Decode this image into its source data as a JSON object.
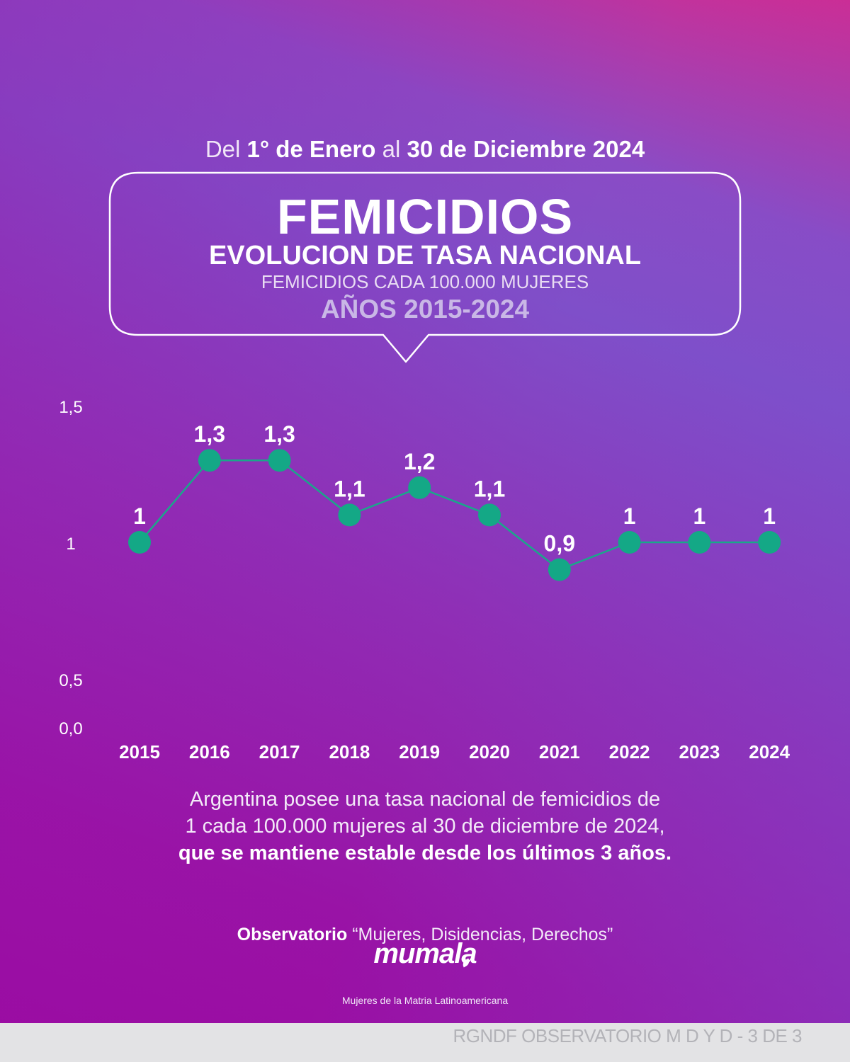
{
  "header": {
    "date_prefix": "Del",
    "date_mid": "1° de Enero",
    "date_connector": "al",
    "date_end": "30 de Diciembre 2024",
    "title": "FEMICIDIOS",
    "subtitle": "EVOLUCION DE TASA NACIONAL",
    "unit": "FEMICIDIOS CADA 100.000 MUJERES",
    "years": "AÑOS 2015-2024"
  },
  "chart_data": {
    "type": "line",
    "categories": [
      "2015",
      "2016",
      "2017",
      "2018",
      "2019",
      "2020",
      "2021",
      "2022",
      "2023",
      "2024"
    ],
    "series": [
      {
        "values": [
          1,
          1.3,
          1.3,
          1.1,
          1.2,
          1.1,
          0.9,
          1,
          1,
          1
        ]
      }
    ],
    "data_labels": [
      "1",
      "1,3",
      "1,3",
      "1,1",
      "1,2",
      "1,1",
      "0,9",
      "1",
      "1",
      "1"
    ],
    "y_tick_labels": [
      "0,0",
      "0,5",
      "1",
      "1,5"
    ],
    "y_ticks": [
      0,
      0.5,
      1,
      1.5
    ],
    "ylim": [
      0,
      1.5
    ],
    "y_scale": "nonlinear (0–0.5 compressed, 0.5–1.5 expanded)",
    "grid": false,
    "colors": {
      "line": "#1aa78a",
      "marker": "#14a886",
      "labels": "#ffffff"
    }
  },
  "note": {
    "line1": "Argentina posee una tasa nacional de femicidios de",
    "line2": "1 cada 100.000 mujeres al 30 de diciembre de 2024,",
    "line3": "que se mantiene estable desde los últimos 3 años."
  },
  "footer": {
    "observatorio_bold": "Observatorio",
    "observatorio_rest": "“Mujeres, Disidencias, Derechos”",
    "logo_text": "mumala",
    "logo_subtitle": "Mujeres de la Matria Latinoamericana",
    "bar_text": "RGNDF OBSERVATORIO M D Y D - 3 DE 3"
  },
  "colors": {
    "bg_top": "#8a4cc5",
    "bg_bottom": "#9b0aa1",
    "accent_green": "#14a886",
    "footer_bar": "#e3e3e5"
  }
}
